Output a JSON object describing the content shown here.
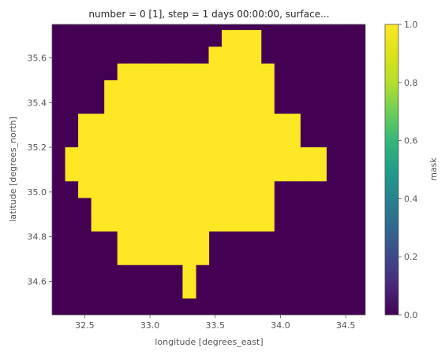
{
  "chart_data": {
    "type": "heatmap",
    "title": "number = 0 [1], step = 1 days 00:00:00, surface...",
    "xlabel": "longitude [degrees_east]",
    "ylabel": "latitude [degrees_north]",
    "colorbar_label": "mask",
    "colormap": "viridis",
    "xlim": [
      32.25,
      34.65
    ],
    "ylim": [
      34.45,
      35.75
    ],
    "x_ticks": [
      32.5,
      33.0,
      33.5,
      34.0,
      34.5
    ],
    "x_tick_labels": [
      "32.5",
      "33.0",
      "33.5",
      "34.0",
      "34.5"
    ],
    "y_ticks": [
      34.6,
      34.8,
      35.0,
      35.2,
      35.4,
      35.6
    ],
    "y_tick_labels": [
      "34.6",
      "34.8",
      "35.0",
      "35.2",
      "35.4",
      "35.6"
    ],
    "colorbar_ticks": [
      0.0,
      0.2,
      0.4,
      0.6,
      0.8,
      1.0
    ],
    "colorbar_tick_labels": [
      "0.0",
      "0.2",
      "0.4",
      "0.6",
      "0.8",
      "1.0"
    ],
    "vmin": 0.0,
    "vmax": 1.0,
    "grid": {
      "lon_start": 32.25,
      "lon_step": 0.1,
      "lat_start": 34.45,
      "lat_step": 0.075
    },
    "values": [
      "000000000000000000000000",
      "000000000010000000000000",
      "000000000010000000000000",
      "000001111111000000000000",
      "000001111111000000000000",
      "000111111111111110000000",
      "000111111111111110000000",
      "001111111111111110000000",
      "011111111111111111111000",
      "011111111111111111111000",
      "001111111111111111100000",
      "001111111111111111100000",
      "000011111111111110000000",
      "000011111111111110000000",
      "000001111111111110000000",
      "000000000000111100000000",
      "000000000000011100000000",
      "000000000000000000000000"
    ],
    "colors": {
      "low": "#440154",
      "high": "#fde725"
    }
  }
}
